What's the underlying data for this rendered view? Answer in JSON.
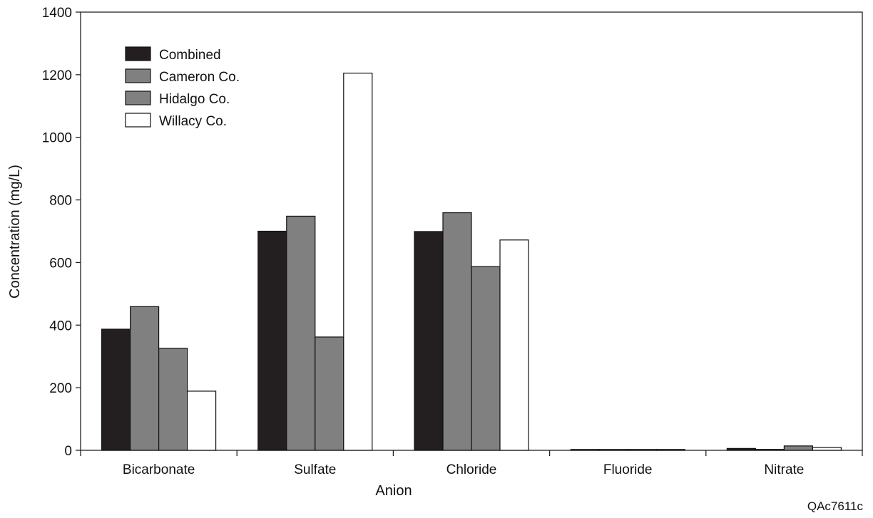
{
  "chart_data": {
    "type": "bar",
    "xlabel": "Anion",
    "ylabel": "Concentration (mg/L)",
    "ylim": [
      0,
      1400
    ],
    "yticks": [
      0,
      200,
      400,
      600,
      800,
      1000,
      1200,
      1400
    ],
    "categories": [
      "Bicarbonate",
      "Sulfate",
      "Chloride",
      "Fluoride",
      "Nitrate"
    ],
    "series": [
      {
        "name": "Combined",
        "color": "#231f20",
        "values": [
          387,
          700,
          699,
          0.7,
          6
        ]
      },
      {
        "name": "Cameron Co.",
        "color": "#808080",
        "values": [
          459,
          748,
          759,
          0.8,
          3
        ]
      },
      {
        "name": "Hidalgo Co.",
        "color": "#808080",
        "values": [
          326,
          362,
          587,
          0.9,
          14
        ]
      },
      {
        "name": "Willacy Co.",
        "color": "#ffffff",
        "values": [
          189,
          1205,
          672,
          0.9,
          9
        ]
      }
    ],
    "legend_position": "top-left",
    "grid": false
  },
  "figure_id": "QAc7611c"
}
